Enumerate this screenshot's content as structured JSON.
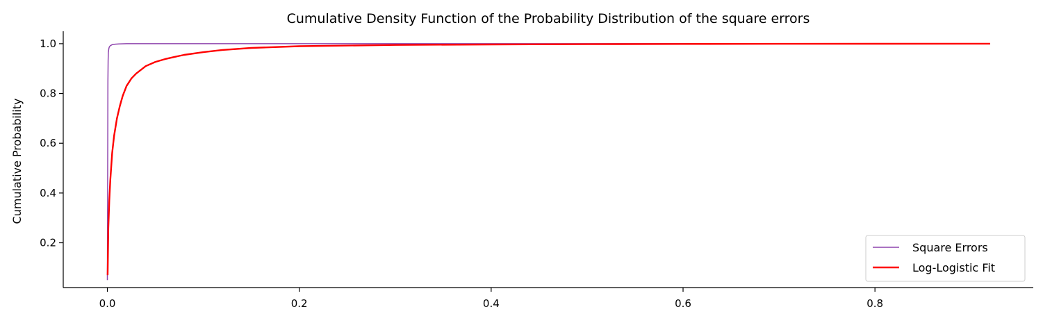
{
  "chart_data": {
    "type": "line",
    "title": "Cumulative Density Function of the Probability Distribution of the square errors",
    "xlabel": "",
    "ylabel": "Cumulative Probability",
    "xlim": [
      -0.046,
      0.965
    ],
    "ylim": [
      0.02,
      1.05
    ],
    "xticks": [
      0.0,
      0.2,
      0.4,
      0.6,
      0.8
    ],
    "xtick_labels": [
      "0.0",
      "0.2",
      "0.4",
      "0.6",
      "0.8"
    ],
    "yticks": [
      0.2,
      0.4,
      0.6,
      0.8,
      1.0
    ],
    "ytick_labels": [
      "0.2",
      "0.4",
      "0.6",
      "0.8",
      "1.0"
    ],
    "grid": false,
    "legend_position": "bottom-right",
    "series": [
      {
        "name": "Square Errors",
        "color": "#8e44ad",
        "x": [
          0.0,
          0.0002,
          0.0004,
          0.0006,
          0.0008,
          0.001,
          0.0015,
          0.002,
          0.003,
          0.005,
          0.008,
          0.012,
          0.02,
          0.05,
          0.1,
          0.3,
          0.5,
          0.7,
          0.92
        ],
        "y": [
          0.05,
          0.3,
          0.6,
          0.85,
          0.93,
          0.965,
          0.98,
          0.987,
          0.992,
          0.996,
          0.998,
          0.999,
          1.0,
          1.0,
          1.0,
          1.0,
          1.0,
          1.0,
          1.0
        ]
      },
      {
        "name": "Log-Logistic Fit",
        "color": "#ff0000",
        "x": [
          0.0003,
          0.001,
          0.002,
          0.003,
          0.005,
          0.007,
          0.01,
          0.013,
          0.016,
          0.02,
          0.025,
          0.03,
          0.04,
          0.05,
          0.06,
          0.07,
          0.08,
          0.1,
          0.12,
          0.15,
          0.2,
          0.3,
          0.4,
          0.5,
          0.6,
          0.7,
          0.8,
          0.92
        ],
        "y": [
          0.07,
          0.26,
          0.37,
          0.45,
          0.56,
          0.63,
          0.7,
          0.75,
          0.79,
          0.83,
          0.86,
          0.88,
          0.91,
          0.927,
          0.938,
          0.947,
          0.955,
          0.966,
          0.975,
          0.983,
          0.99,
          0.995,
          0.997,
          0.998,
          0.999,
          0.9995,
          0.9998,
          1.0
        ]
      }
    ]
  }
}
